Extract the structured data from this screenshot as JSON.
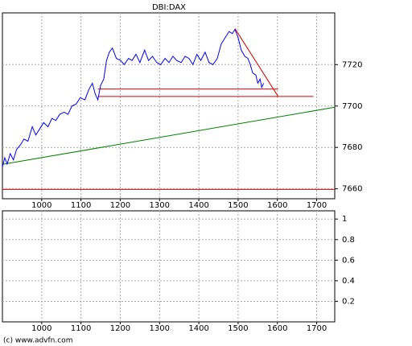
{
  "chart_data": [
    {
      "type": "line",
      "title": "DBI:DAX",
      "xlim": [
        900,
        1746
      ],
      "xticks": [
        1000,
        1100,
        1200,
        1300,
        1400,
        1500,
        1600,
        1700
      ],
      "ylim": [
        7655.2,
        7745
      ],
      "yticks": [
        7660,
        7680,
        7700,
        7720
      ],
      "grid": true,
      "series": [
        {
          "color": "#0000ff",
          "x": [
            900,
            906,
            912,
            920,
            928,
            936,
            945,
            955,
            965,
            976,
            985,
            995,
            1005,
            1016,
            1026,
            1036,
            1046,
            1057,
            1067,
            1077,
            1088,
            1098,
            1110,
            1120,
            1129,
            1136,
            1143,
            1150,
            1158,
            1165,
            1172,
            1180,
            1190,
            1201,
            1210,
            1221,
            1230,
            1240,
            1250,
            1262,
            1272,
            1282,
            1293,
            1303,
            1314,
            1324,
            1334,
            1344,
            1355,
            1365,
            1375,
            1385,
            1395,
            1405,
            1416,
            1426,
            1436,
            1447,
            1457,
            1467,
            1477,
            1485,
            1492,
            1500,
            1508,
            1517,
            1525,
            1531,
            1537,
            1545,
            1550,
            1556,
            1560,
            1565
          ],
          "values": [
            7670.5,
            7675,
            7672,
            7677,
            7674,
            7679,
            7681,
            7684,
            7683,
            7690,
            7686,
            7689,
            7692,
            7690,
            7694,
            7693,
            7696,
            7697,
            7696,
            7700,
            7701,
            7704,
            7703,
            7708,
            7711,
            7706,
            7703,
            7710,
            7713,
            7722,
            7726,
            7728,
            7723,
            7722,
            7720,
            7723,
            7722,
            7725,
            7721,
            7727,
            7722,
            7724,
            7721,
            7720,
            7723,
            7721,
            7724,
            7722,
            7721,
            7724,
            7723,
            7720,
            7725,
            7722,
            7726,
            7721,
            7720,
            7723,
            7730,
            7733,
            7736,
            7735,
            7737,
            7733,
            7727,
            7724,
            7723,
            7720,
            7716,
            7715,
            7711,
            7713,
            7709,
            7711
          ]
        }
      ],
      "lines": [
        {
          "color": "#dd0000",
          "x": [
            1492,
            1602
          ],
          "values": [
            7737.4,
            7704.6
          ]
        },
        {
          "color": "#dd0000",
          "x": [
            1143,
            1602
          ],
          "values": [
            7708.2,
            7708.2
          ]
        },
        {
          "color": "#dd0000",
          "x": [
            1143,
            1692
          ],
          "values": [
            7704.6,
            7704.6
          ]
        },
        {
          "color": "#008000",
          "x": [
            900,
            1746
          ],
          "values": [
            7671.8,
            7699.4
          ]
        },
        {
          "color": "#dd0000",
          "x": [
            900,
            1746
          ],
          "values": [
            7659.7,
            7659.7
          ]
        }
      ]
    },
    {
      "type": "line",
      "xlim": [
        900,
        1746
      ],
      "xticks": [
        1000,
        1100,
        1200,
        1300,
        1400,
        1500,
        1600,
        1700
      ],
      "ylim": [
        0,
        1.08
      ],
      "yticks": [
        0.2,
        0.4,
        0.6,
        0.8,
        1
      ],
      "grid": true
    }
  ],
  "footer": "(c) www.advfn.com"
}
